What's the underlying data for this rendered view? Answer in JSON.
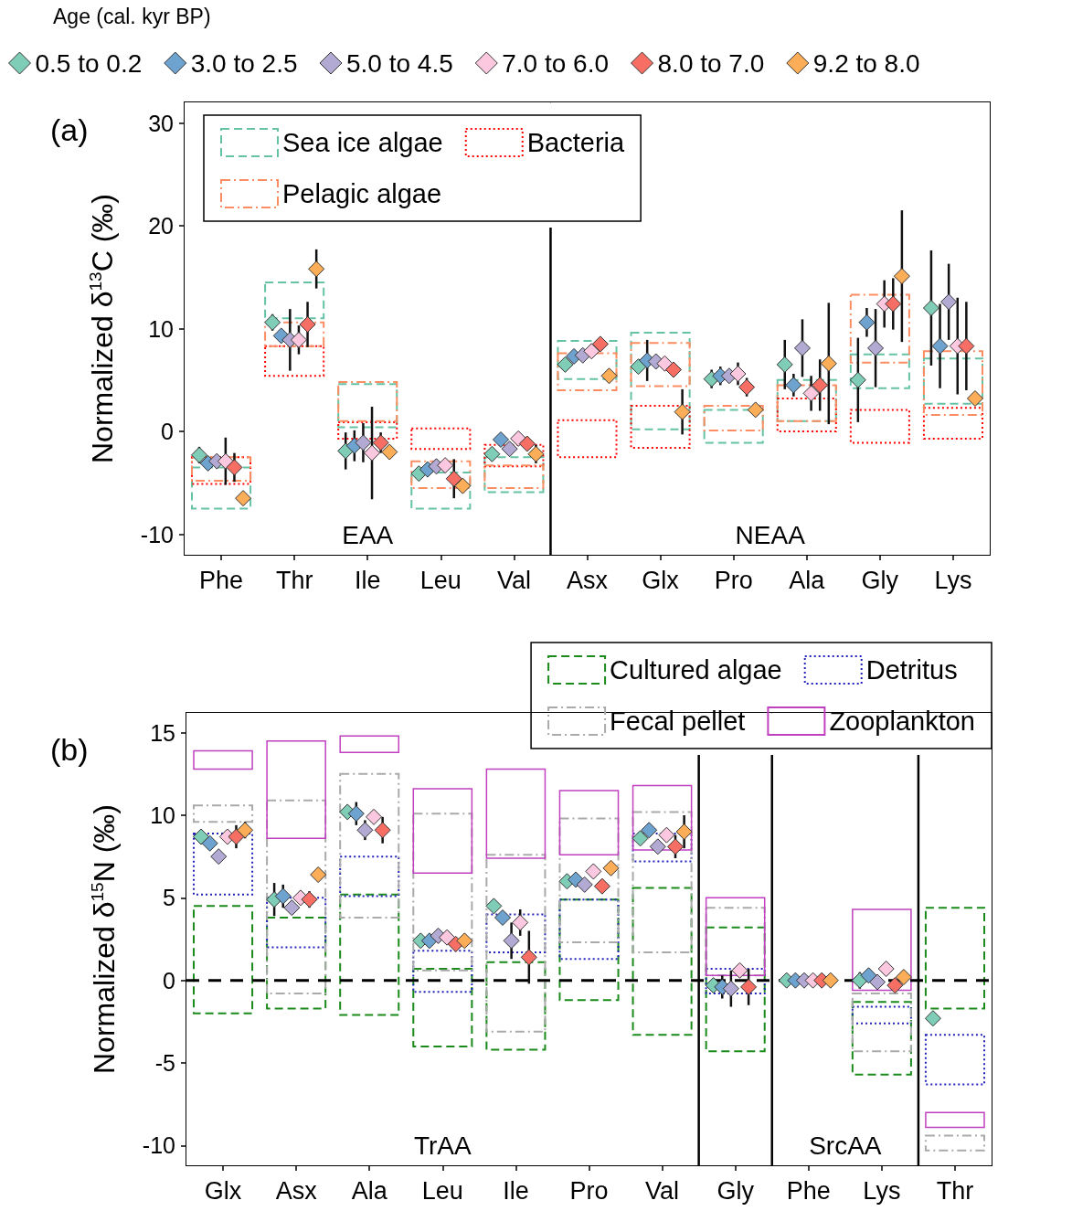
{
  "chart_data": [
    {
      "type": "scatter",
      "title": "(a)",
      "ylabel": "Normalized δ$^{13}$C (‰)",
      "legend_title": "Age (cal. kyr BP)",
      "legend": "top left",
      "marker": "diamond",
      "categories": [
        "Phe",
        "Thr",
        "Ile",
        "Leu",
        "Val",
        "Asx",
        "Glx",
        "Pro",
        "Ala",
        "Gly",
        "Lys"
      ],
      "ylim": [
        -12,
        32
      ],
      "yticks": [
        -10,
        0,
        10,
        20,
        30
      ],
      "bands": [
        {
          "axis": "x",
          "from": "Phe",
          "to": "Val",
          "label": "EAA",
          "color": "#ffffff"
        },
        {
          "axis": "x",
          "from": "Asx",
          "to": "Lys",
          "label": "NEAA",
          "color": "#ffffff"
        }
      ],
      "series": [
        {
          "type": "bar",
          "name": "Sea ice algae",
          "color": "#66c2a5",
          "line_style": "dashed",
          "base": [
            -7.5,
            11.0,
            0.4,
            -7.5,
            -5.9,
            5.1,
            0.2,
            -1.1,
            1.0,
            4.2,
            2.7
          ],
          "values": [
            4.0,
            3.5,
            4.2,
            3.5,
            3.4,
            3.7,
            9.4,
            3.2,
            4.0,
            3.3,
            4.4
          ]
        },
        {
          "type": "bar",
          "name": "Bacteria",
          "color": "#ff0000",
          "line_style": "dotted",
          "base": [
            -5.1,
            5.4,
            -0.7,
            -1.7,
            -3.4,
            -2.5,
            -1.6,
            null,
            0.0,
            -1.1,
            -0.7
          ],
          "values": [
            2.6,
            2.9,
            1.6,
            2.0,
            2.1,
            3.6,
            4.1,
            null,
            3.2,
            3.2,
            3.0
          ]
        },
        {
          "type": "bar",
          "name": "Pelagic algae",
          "color": "#fc8d62",
          "line_style": "dashdot",
          "base": [
            -4.8,
            8.3,
            1.0,
            -5.5,
            -5.5,
            4.0,
            4.4,
            0.1,
            1.0,
            6.7,
            1.6
          ],
          "values": [
            2.3,
            2.3,
            3.8,
            2.6,
            2.2,
            3.6,
            4.2,
            2.4,
            3.5,
            6.6,
            6.2
          ]
        },
        {
          "name": "0.5 to 0.2",
          "color": "#7fcdb6",
          "x": [
            "Phe",
            "Thr",
            "Ile",
            "Leu",
            "Val",
            "Asx",
            "Glx",
            "Pro",
            "Ala",
            "Gly",
            "Lys"
          ],
          "values": [
            -2.3,
            10.6,
            -1.9,
            -4.1,
            -2.2,
            6.5,
            6.3,
            5.1,
            6.5,
            5.0,
            12.0
          ],
          "errors": [
            0.8,
            0.8,
            1.8,
            null,
            null,
            null,
            null,
            0.9,
            2.4,
            4.1,
            5.6
          ]
        },
        {
          "name": "3.0 to 2.5",
          "color": "#6fa3cf",
          "x": [
            "Phe",
            "Thr",
            "Ile",
            "Leu",
            "Val",
            "Asx",
            "Glx",
            "Pro",
            "Ala",
            "Gly",
            "Lys"
          ],
          "values": [
            -3.1,
            9.3,
            -1.4,
            -3.7,
            -0.8,
            7.3,
            6.9,
            5.4,
            4.5,
            10.6,
            8.3
          ],
          "errors": [
            0.5,
            null,
            1.5,
            null,
            null,
            0.5,
            2.0,
            0.9,
            1.1,
            1.4,
            4.1
          ]
        },
        {
          "name": "5.0 to 4.5",
          "color": "#b3aad4",
          "x": [
            "Phe",
            "Thr",
            "Ile",
            "Leu",
            "Val",
            "Asx",
            "Glx",
            "Pro",
            "Ala",
            "Gly",
            "Lys"
          ],
          "values": [
            -2.9,
            8.9,
            -1.1,
            -3.4,
            -1.7,
            7.4,
            6.8,
            5.4,
            8.1,
            8.1,
            12.6
          ],
          "errors": [
            null,
            3.0,
            1.9,
            null,
            null,
            null,
            0.5,
            null,
            2.8,
            3.8,
            3.7
          ]
        },
        {
          "name": "7.0 to 6.0",
          "color": "#fbc8e0",
          "x": [
            "Phe",
            "Thr",
            "Ile",
            "Leu",
            "Val",
            "Asx",
            "Glx",
            "Pro",
            "Ala",
            "Gly",
            "Lys"
          ],
          "values": [
            -2.9,
            8.9,
            -2.1,
            -3.3,
            -0.7,
            7.8,
            6.6,
            5.6,
            3.7,
            12.4,
            8.3
          ],
          "errors": [
            2.3,
            1.4,
            4.5,
            null,
            null,
            null,
            null,
            1.1,
            1.7,
            2.3,
            4.7
          ]
        },
        {
          "name": "8.0 to 7.0",
          "color": "#f76e65",
          "x": [
            "Phe",
            "Thr",
            "Ile",
            "Leu",
            "Val",
            "Asx",
            "Glx",
            "Pro",
            "Ala",
            "Gly",
            "Lys"
          ],
          "values": [
            -3.5,
            10.4,
            -1.1,
            -4.6,
            -1.2,
            8.5,
            6.0,
            4.3,
            4.5,
            12.4,
            8.3
          ],
          "errors": [
            1.4,
            2.2,
            1.0,
            1.9,
            null,
            null,
            null,
            0.9,
            2.5,
            2.5,
            4.3
          ]
        },
        {
          "name": "9.2 to 8.0",
          "color": "#fbad57",
          "x": [
            "Phe",
            "Thr",
            "Ile",
            "Leu",
            "Val",
            "Asx",
            "Glx",
            "Pro",
            "Ala",
            "Gly",
            "Lys"
          ],
          "values": [
            -6.5,
            15.8,
            -2.0,
            -5.3,
            -2.2,
            5.4,
            1.9,
            2.1,
            6.6,
            15.1,
            3.2
          ],
          "errors": [
            null,
            1.9,
            null,
            null,
            0.9,
            null,
            2.2,
            null,
            5.9,
            6.4,
            null
          ]
        }
      ]
    },
    {
      "type": "scatter",
      "title": "(b)",
      "ylabel": "Normalized δ$^{15}$N (‰)",
      "legend": "top right",
      "marker": "diamond",
      "categories": [
        "Glx",
        "Asx",
        "Ala",
        "Leu",
        "Ile",
        "Pro",
        "Val",
        "Gly",
        "Phe",
        "Lys",
        "Thr"
      ],
      "ylim": [
        -11.2,
        16.2
      ],
      "yticks": [
        -10,
        -5,
        0,
        5,
        10,
        15
      ],
      "ref_lines": [
        {
          "axis": "y",
          "value": 0,
          "color": "#000000",
          "line_style": "dashed"
        }
      ],
      "bands": [
        {
          "axis": "x",
          "from": "Glx",
          "to": "Val",
          "label": "TrAA",
          "color": "#ffffff"
        },
        {
          "axis": "x",
          "from": "Gly",
          "to": "Gly",
          "label": null,
          "color": "#ffffff"
        },
        {
          "axis": "x",
          "from": "Phe",
          "to": "Lys",
          "label": "SrcAA",
          "color": "#ffffff"
        },
        {
          "axis": "x",
          "from": "Thr",
          "to": "Thr",
          "label": null,
          "color": "#ffffff"
        }
      ],
      "series": [
        {
          "type": "bar",
          "name": "Cultured algae",
          "color": "#1a8a1a",
          "line_style": "dashed",
          "base": [
            -2.0,
            -1.7,
            -2.1,
            -4.0,
            -4.2,
            -1.2,
            -3.3,
            -4.3,
            null,
            -5.7,
            -1.7
          ],
          "values": [
            6.5,
            5.5,
            7.3,
            4.7,
            5.3,
            6.1,
            8.9,
            7.5,
            null,
            4.4,
            6.1
          ]
        },
        {
          "type": "bar",
          "name": "Detritus",
          "color": "#2222bb",
          "line_style": "dotted",
          "base": [
            5.2,
            2.0,
            5.1,
            -0.7,
            1.7,
            1.3,
            7.2,
            -0.8,
            null,
            -2.6,
            -6.3
          ],
          "values": [
            3.7,
            3.0,
            2.4,
            2.5,
            2.3,
            3.6,
            1.7,
            1.5,
            null,
            1.0,
            3.0
          ]
        },
        {
          "type": "bar",
          "name": "Fecal pellet",
          "color": "#aaaaaa",
          "line_style": "dashdot",
          "base": [
            9.6,
            -0.8,
            3.8,
            0.6,
            -3.1,
            2.3,
            1.7,
            0.3,
            null,
            -4.3,
            -10.3
          ],
          "values": [
            1.0,
            11.7,
            8.7,
            9.5,
            10.7,
            7.5,
            8.5,
            4.1,
            null,
            3.5,
            0.9
          ]
        },
        {
          "type": "bar",
          "name": "Zooplankton",
          "color": "#c040c0",
          "line_style": "solid",
          "base": [
            12.8,
            8.6,
            13.8,
            6.5,
            7.4,
            7.6,
            7.9,
            0.3,
            null,
            -0.6,
            -8.9
          ],
          "values": [
            1.1,
            5.9,
            1.0,
            5.1,
            5.4,
            3.9,
            3.9,
            4.7,
            null,
            4.9,
            0.9
          ]
        },
        {
          "color": "#7fcdb6",
          "x": [
            "Glx",
            "Asx",
            "Ala",
            "Leu",
            "Ile",
            "Pro",
            "Val",
            "Gly",
            "Phe",
            "Lys",
            "Thr"
          ],
          "values": [
            8.7,
            4.9,
            10.2,
            2.4,
            4.5,
            6.0,
            8.6,
            -0.3,
            0,
            0.0,
            -2.3
          ],
          "errors": [
            null,
            1.0,
            null,
            null,
            null,
            null,
            null,
            null,
            null,
            0.5,
            null
          ]
        },
        {
          "color": "#6fa3cf",
          "x": [
            "Glx",
            "Asx",
            "Ala",
            "Leu",
            "Ile",
            "Pro",
            "Val",
            "Gly",
            "Phe",
            "Lys",
            "Thr"
          ],
          "values": [
            8.3,
            5.1,
            10.1,
            2.4,
            3.8,
            6.1,
            9.1,
            -0.4,
            0,
            0.3,
            null
          ],
          "errors": [
            null,
            0.7,
            0.7,
            null,
            null,
            null,
            null,
            0.7,
            null,
            null,
            null
          ]
        },
        {
          "color": "#b3aad4",
          "x": [
            "Glx",
            "Asx",
            "Ala",
            "Leu",
            "Ile",
            "Pro",
            "Val",
            "Gly",
            "Phe",
            "Lys",
            "Thr"
          ],
          "values": [
            7.5,
            4.4,
            9.1,
            2.7,
            2.4,
            5.8,
            8.1,
            -0.5,
            0,
            -0.1,
            null
          ],
          "errors": [
            null,
            null,
            0.6,
            null,
            1.1,
            null,
            null,
            1.1,
            null,
            null,
            null
          ]
        },
        {
          "color": "#fbc8e0",
          "x": [
            "Glx",
            "Asx",
            "Ala",
            "Leu",
            "Ile",
            "Pro",
            "Val",
            "Gly",
            "Phe",
            "Lys",
            "Thr"
          ],
          "values": [
            8.7,
            5.0,
            9.9,
            2.6,
            3.5,
            6.6,
            8.8,
            0.6,
            0,
            0.7,
            null
          ],
          "errors": [
            null,
            null,
            null,
            null,
            0.8,
            null,
            null,
            null,
            null,
            null,
            null
          ]
        },
        {
          "color": "#f76e65",
          "x": [
            "Glx",
            "Asx",
            "Ala",
            "Leu",
            "Ile",
            "Pro",
            "Val",
            "Gly",
            "Phe",
            "Lys",
            "Thr"
          ],
          "values": [
            8.7,
            4.9,
            9.1,
            2.2,
            1.4,
            5.7,
            8.1,
            -0.4,
            0,
            -0.3,
            null
          ],
          "errors": [
            0.7,
            0.5,
            0.8,
            null,
            1.6,
            null,
            0.7,
            1.1,
            null,
            null,
            null
          ]
        },
        {
          "color": "#fbad57",
          "x": [
            "Glx",
            "Asx",
            "Ala",
            "Leu",
            "Ile",
            "Pro",
            "Val",
            "Gly",
            "Phe",
            "Lys",
            "Thr"
          ],
          "values": [
            9.1,
            6.4,
            null,
            2.4,
            null,
            6.8,
            9.0,
            null,
            0,
            0.2,
            null
          ],
          "errors": [
            0.5,
            null,
            null,
            null,
            null,
            null,
            1.0,
            null,
            null,
            null,
            null
          ]
        }
      ]
    }
  ]
}
